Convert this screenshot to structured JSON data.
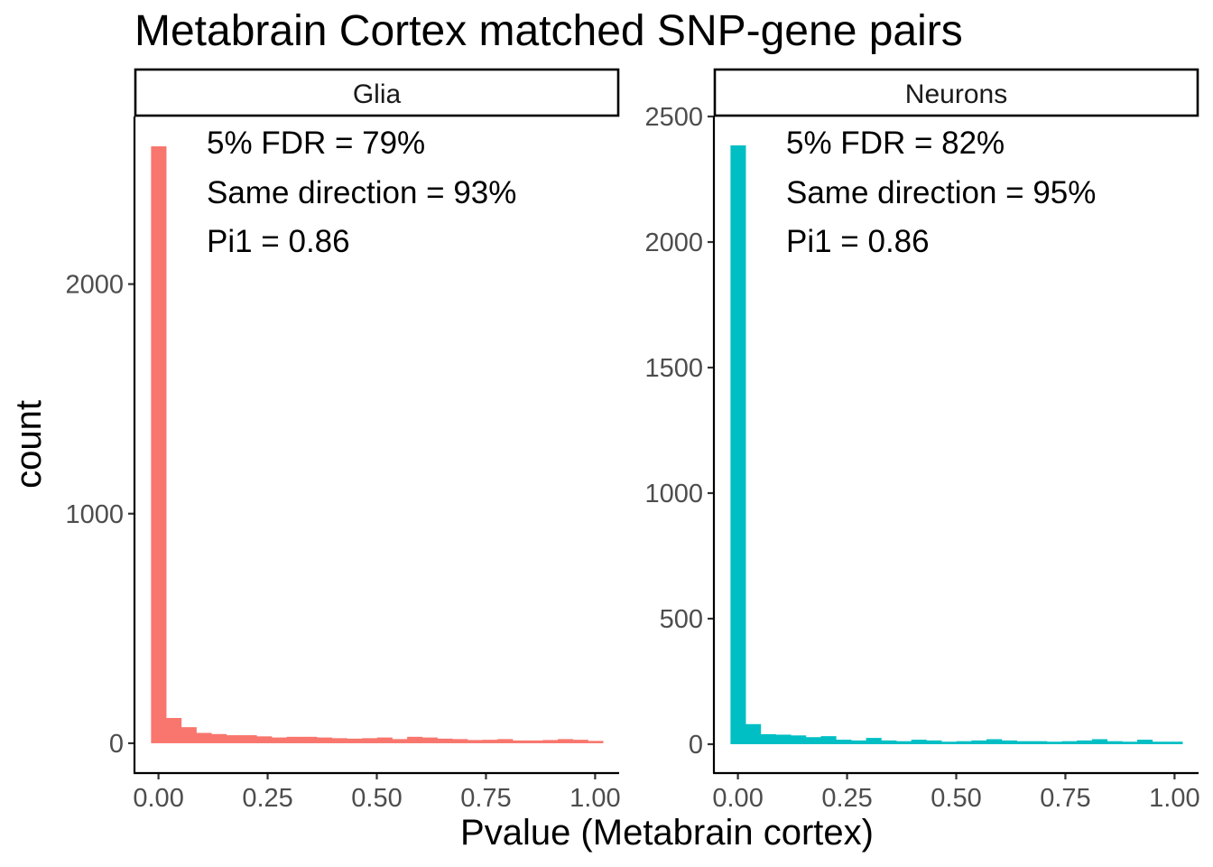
{
  "chart_data": {
    "type": "bar",
    "title": "Metabrain Cortex matched SNP-gene pairs",
    "xlabel": "Pvalue (Metabrain cortex)",
    "ylabel": "count",
    "panels": [
      {
        "name": "Glia",
        "color": "#F8766D",
        "xlim": [
          -0.055,
          1.055
        ],
        "ylim": [
          -130,
          2730
        ],
        "xticks": [
          "0.00",
          "0.25",
          "0.50",
          "0.75",
          "1.00"
        ],
        "xtick_values": [
          0,
          0.25,
          0.5,
          0.75,
          1.0
        ],
        "yticks": [
          "0",
          "1000",
          "2000"
        ],
        "ytick_values": [
          0,
          1000,
          2000
        ],
        "bin_width": 0.0345,
        "bin_start": -0.017,
        "values": [
          2600,
          110,
          70,
          45,
          40,
          35,
          35,
          30,
          25,
          28,
          28,
          25,
          22,
          20,
          22,
          25,
          18,
          28,
          25,
          20,
          18,
          14,
          15,
          18,
          12,
          12,
          14,
          18,
          15,
          10
        ],
        "annotations": [
          "5% FDR = 79%",
          "Same direction = 93%",
          "Pi1 = 0.86"
        ]
      },
      {
        "name": "Neurons",
        "color": "#00BFC4",
        "xlim": [
          -0.055,
          1.055
        ],
        "ylim": [
          -115,
          2500
        ],
        "xticks": [
          "0.00",
          "0.25",
          "0.50",
          "0.75",
          "1.00"
        ],
        "xtick_values": [
          0,
          0.25,
          0.5,
          0.75,
          1.0
        ],
        "yticks": [
          "0",
          "500",
          "1000",
          "1500",
          "2000",
          "2500"
        ],
        "ytick_values": [
          0,
          500,
          1000,
          1500,
          2000,
          2500
        ],
        "bin_width": 0.0345,
        "bin_start": -0.017,
        "values": [
          2385,
          80,
          40,
          38,
          35,
          28,
          32,
          18,
          15,
          25,
          15,
          12,
          18,
          15,
          10,
          12,
          15,
          20,
          15,
          12,
          12,
          10,
          12,
          15,
          20,
          12,
          10,
          18,
          10,
          10
        ],
        "annotations": [
          "5% FDR = 82%",
          "Same direction = 95%",
          "Pi1 = 0.86"
        ]
      }
    ]
  }
}
